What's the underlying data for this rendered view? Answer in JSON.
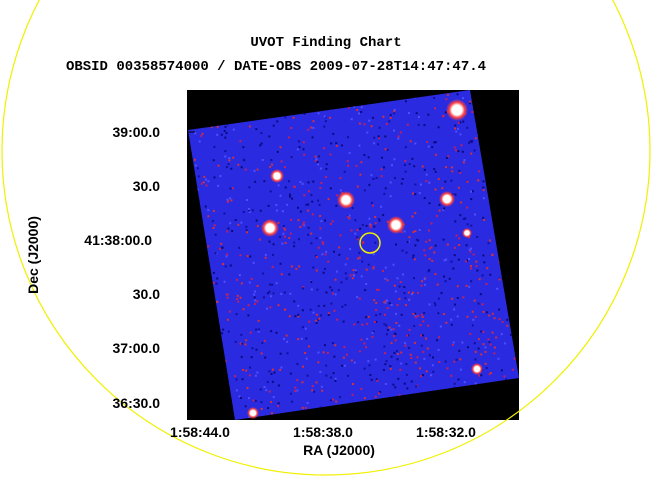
{
  "header": {
    "title": "UVOT Finding Chart",
    "subtitle": "OBSID 00358574000 / DATE-OBS 2009-07-28T14:47:47.4"
  },
  "axes": {
    "x_label": "RA (J2000)",
    "y_label": "Dec (J2000)",
    "x_ticks": [
      "1:58:44.0",
      "1:58:38.0",
      "1:58:32.0"
    ],
    "y_ticks": [
      "39:00.0",
      "30.0",
      "41:38:00.0",
      "30.0",
      "37:00.0",
      "36:30.0"
    ]
  }
}
